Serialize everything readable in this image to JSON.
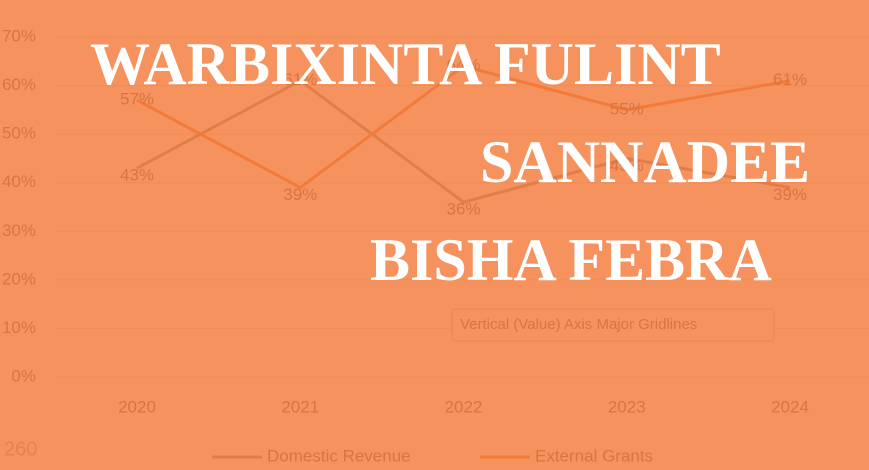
{
  "chart_data": {
    "type": "line",
    "overlay_lines": [
      "WARBIXINTA FULINT",
      "SANNADEE",
      "BISHA FEBRA"
    ],
    "tooltip": "Vertical (Value) Axis Major Gridlines",
    "corner_text": "260",
    "categories": [
      "2020",
      "2021",
      "2022",
      "2023",
      "2024"
    ],
    "series": [
      {
        "name": "Domestic Revenue",
        "color": "#8c8c8c",
        "values": [
          43,
          61,
          36,
          45,
          39
        ],
        "value_labels": [
          "43%",
          "61%",
          "36%",
          "45%",
          "39%"
        ]
      },
      {
        "name": "External Grants",
        "color": "#ed7d31",
        "values": [
          57,
          39,
          64,
          55,
          61
        ],
        "value_labels": [
          "57%",
          "39%",
          "64%",
          "55%",
          "61%"
        ]
      }
    ],
    "ylim": [
      0,
      70
    ],
    "yticks": [
      {
        "value": 0,
        "label": "0%"
      },
      {
        "value": 10,
        "label": "10%"
      },
      {
        "value": 20,
        "label": "20%"
      },
      {
        "value": 30,
        "label": "30%"
      },
      {
        "value": 40,
        "label": "40%"
      },
      {
        "value": 50,
        "label": "50%"
      },
      {
        "value": 60,
        "label": "60%"
      },
      {
        "value": 70,
        "label": "70%"
      }
    ],
    "grid": true,
    "legend": "bottom"
  }
}
